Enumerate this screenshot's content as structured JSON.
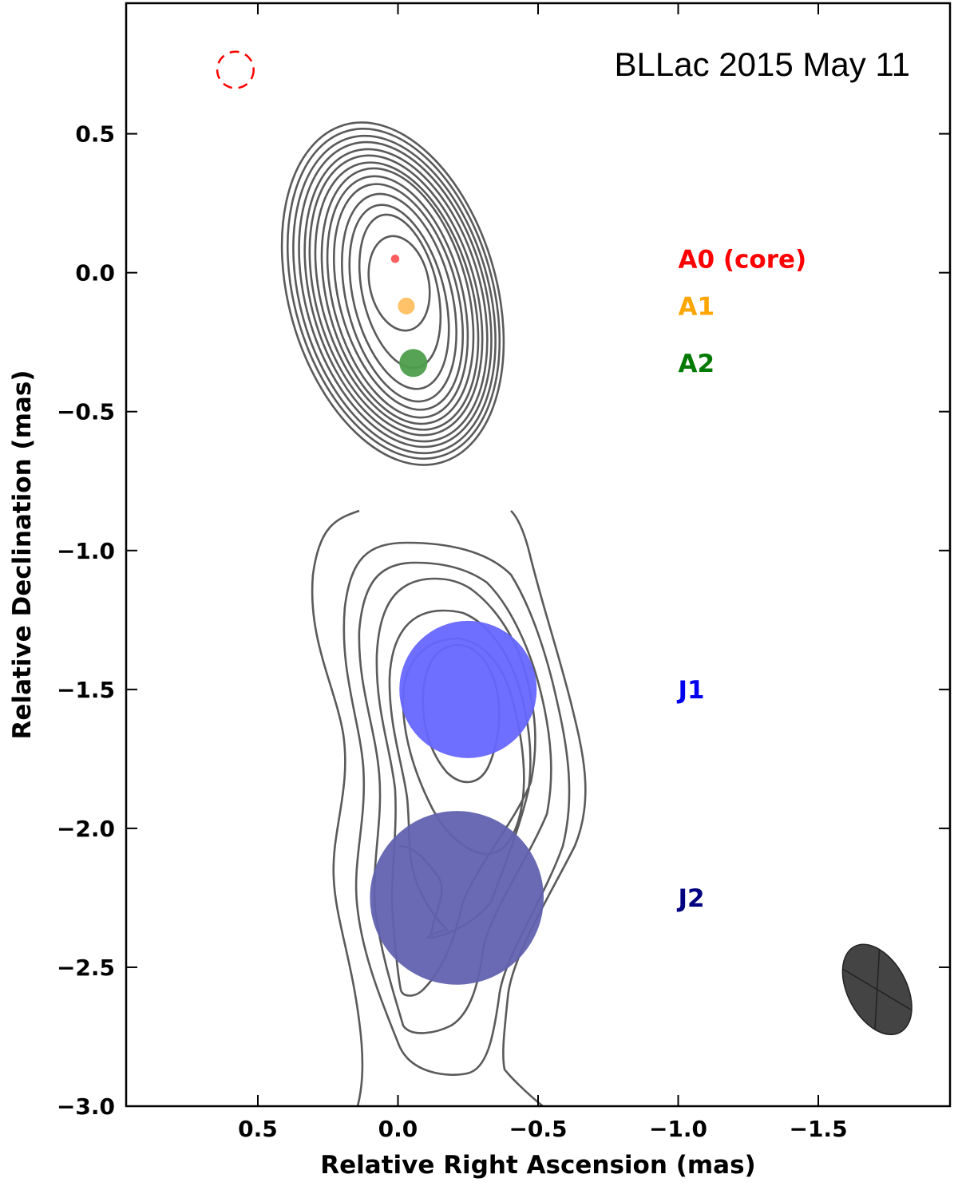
{
  "chart_data": {
    "type": "scatter",
    "title": "BLLac 2015 May 11",
    "xlabel": "Relative Right Ascension (mas)",
    "ylabel": "Relative Declination (mas)",
    "xlim": [
      0.97,
      -1.97
    ],
    "ylim": [
      -3.0,
      0.97
    ],
    "x_ticks": [
      0.5,
      0.0,
      -0.5,
      -1.0,
      -1.5
    ],
    "y_ticks": [
      0.5,
      0.0,
      -0.5,
      -1.0,
      -1.5,
      -2.0,
      -2.5,
      -3.0
    ],
    "x_tick_labels": [
      "0.5",
      "0.0",
      "−0.5",
      "−1.0",
      "−1.5"
    ],
    "y_tick_labels": [
      "0.5",
      "0.0",
      "−0.5",
      "−1.0",
      "−1.5",
      "−2.0",
      "−2.5",
      "−3.0"
    ],
    "components": [
      {
        "label": "A0 (core)",
        "x": 0.01,
        "y": 0.05,
        "size": 0.03,
        "color": "#ff5555",
        "label_color": "#ff0000"
      },
      {
        "label": "A1",
        "x": -0.03,
        "y": -0.12,
        "size": 0.06,
        "color": "#ffbf60",
        "label_color": "#ffa500"
      },
      {
        "label": "A2",
        "x": -0.055,
        "y": -0.325,
        "size": 0.1,
        "color": "#4d9e4d",
        "label_color": "#007a00"
      },
      {
        "label": "J1",
        "x": -0.25,
        "y": -1.5,
        "size": 0.49,
        "color": "#6666ff",
        "label_color": "#0000ee"
      },
      {
        "label": "J2",
        "x": -0.21,
        "y": -2.25,
        "size": 0.62,
        "color": "#6262b0",
        "label_color": "#000080"
      }
    ],
    "beam": {
      "x": -1.71,
      "y": -2.58,
      "major": 0.35,
      "minor": 0.21,
      "color": "#444444"
    },
    "core_marker": {
      "x": 0.58,
      "y": 0.73,
      "size": 0.13,
      "color": "#ff0000",
      "style": "dashed"
    },
    "grid": false
  }
}
